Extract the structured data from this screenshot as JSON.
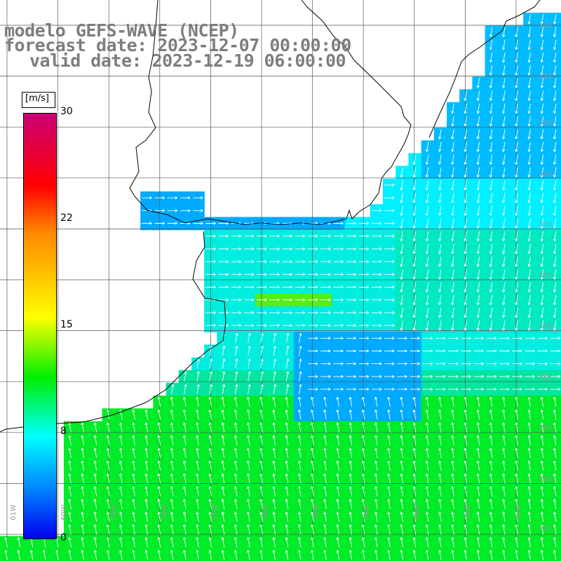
{
  "title": {
    "model": "modelo GEFS-WAVE (NCEP)",
    "forecast": "forecast date: 2023-12-07 00:00:00",
    "valid": "valid date: 2023-12-19 06:00:00"
  },
  "colorbar": {
    "unit": "[m/s]",
    "ticks": [
      "30",
      "22",
      "15",
      "8",
      "0"
    ],
    "colors": [
      "#0000ee",
      "#0088ff",
      "#00ffff",
      "#00ee00",
      "#ffff00",
      "#ff8800",
      "#ff0000",
      "#cc0077"
    ]
  },
  "axes": {
    "lon_labels": [
      "61W",
      "60W",
      "59W",
      "58W",
      "57W",
      "56W",
      "55W",
      "54W",
      "53W",
      "52W",
      "51W"
    ],
    "lat_labels": [
      "31S",
      "32S",
      "33S",
      "34S",
      "35S",
      "36S",
      "37S",
      "38S",
      "39S",
      "40S",
      "41S"
    ]
  },
  "field": {
    "variable": "wind speed and direction",
    "range": [
      0,
      30
    ],
    "grid": "on"
  }
}
